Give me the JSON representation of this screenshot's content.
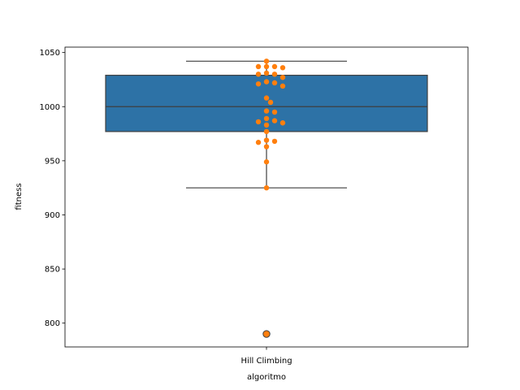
{
  "chart_data": {
    "type": "box",
    "categories": [
      "Hill Climbing"
    ],
    "xlabel": "algoritmo",
    "ylabel": "fitness",
    "ylim": [
      778,
      1055
    ],
    "yticks": [
      800,
      850,
      900,
      950,
      1000,
      1050
    ],
    "grid": false,
    "box": {
      "whisker_low": 925,
      "q1": 977,
      "median": 1000,
      "q3": 1029,
      "whisker_high": 1042,
      "outliers": [
        790
      ]
    },
    "points": [
      1042,
      1037,
      1037,
      1037,
      1036,
      1031,
      1030,
      1030,
      1027,
      1023,
      1022,
      1021,
      1019,
      1008,
      1004,
      996,
      995,
      989,
      987,
      986,
      985,
      983,
      977,
      969,
      968,
      967,
      963,
      949,
      925,
      790
    ],
    "colors": {
      "box": "#2d72a6",
      "points": "#ff7f0e",
      "lines": "#3f3f3f"
    }
  }
}
